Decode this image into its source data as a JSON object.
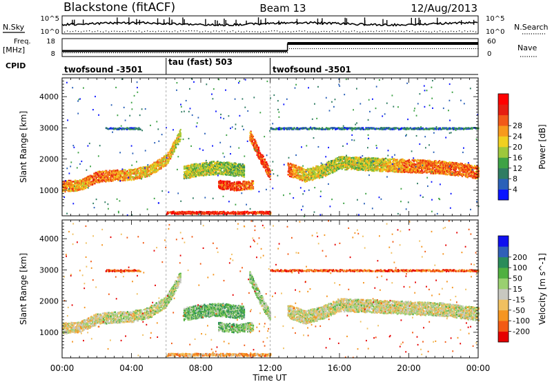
{
  "header": {
    "radar": "Blackstone (fitACF)",
    "beam": "Beam 13",
    "date": "12/Aug/2013"
  },
  "aux": {
    "nsky_label": "N.Sky",
    "nsearch_label": "N.Search",
    "nsky_ticks": [
      "10^5",
      "10^0"
    ],
    "nsearch_ticks": [
      "10^5",
      "10^0"
    ],
    "freq_label_1": "Freq.",
    "freq_label_2": "[MHz]",
    "freq_ticks": [
      "18",
      "8"
    ],
    "nave_label": "Nave",
    "nave_ticks": [
      "60",
      "0"
    ],
    "cpid_label": "CPID",
    "cpid_segments": [
      {
        "label": "twofsound -3501",
        "start_h": 0,
        "end_h": 6
      },
      {
        "label": "tau (fast) 503",
        "start_h": 6,
        "end_h": 12
      },
      {
        "label": "twofsound -3501",
        "start_h": 12,
        "end_h": 24
      }
    ]
  },
  "chart_data": [
    {
      "type": "heatmap",
      "name": "power",
      "ylabel": "Slant Range [km]",
      "y_ticks": [
        "1000",
        "2000",
        "3000",
        "4000"
      ],
      "ylim": [
        180,
        4600
      ],
      "xlim": [
        0,
        24
      ],
      "colorbar": {
        "label": "Power [dB]",
        "ticks": [
          "4",
          "8",
          "12",
          "16",
          "20",
          "24",
          "28"
        ],
        "colors": [
          "#0a14ff",
          "#2a60b8",
          "#2f7c62",
          "#3ea245",
          "#9ec83c",
          "#f0d020",
          "#f79a1c",
          "#f25a18",
          "#e61e10",
          "#ff0000"
        ]
      },
      "bands": [
        {
          "h": [
            0,
            1,
            2,
            3,
            4,
            5,
            6,
            6.8
          ],
          "r": [
            1150,
            1180,
            1450,
            1500,
            1520,
            1650,
            2000,
            2800
          ],
          "w": 250,
          "c": [
            0.75,
            0.6,
            0.75,
            0.7,
            0.6,
            0.6,
            0.6,
            0.5
          ]
        },
        {
          "h": [
            7,
            8,
            9,
            10.5
          ],
          "r": [
            1600,
            1700,
            1750,
            1650
          ],
          "w": 300,
          "c": [
            0.45,
            0.5,
            0.45,
            0.4
          ]
        },
        {
          "h": [
            9,
            10,
            11
          ],
          "r": [
            1200,
            1150,
            1200
          ],
          "w": 200,
          "c": [
            0.8,
            0.8,
            0.7
          ]
        },
        {
          "h": [
            10.8,
            11.4,
            12
          ],
          "r": [
            2800,
            2100,
            1500
          ],
          "w": 250,
          "c": [
            0.7,
            0.8,
            0.75
          ]
        },
        {
          "h": [
            13,
            14,
            15,
            16,
            18,
            20,
            22,
            24
          ],
          "r": [
            1700,
            1500,
            1650,
            1900,
            1850,
            1800,
            1750,
            1600
          ],
          "w": 300,
          "c": [
            0.75,
            0.55,
            0.5,
            0.5,
            0.5,
            0.7,
            0.7,
            0.75
          ]
        },
        {
          "h": [
            2.5,
            3.5,
            4.5
          ],
          "r": [
            3000,
            3000,
            3000
          ],
          "w": 40,
          "c": [
            0.2,
            0.2,
            0.2
          ]
        },
        {
          "h": [
            12,
            16,
            20,
            24
          ],
          "r": [
            3000,
            3000,
            3000,
            3000
          ],
          "w": 40,
          "c": [
            0.2,
            0.2,
            0.2,
            0.2
          ]
        },
        {
          "h": [
            6,
            9,
            12
          ],
          "r": [
            300,
            300,
            300
          ],
          "w": 60,
          "c": [
            0.85,
            0.85,
            0.85
          ]
        }
      ]
    },
    {
      "type": "heatmap",
      "name": "velocity",
      "ylabel": "Slant Range [km]",
      "y_ticks": [
        "1000",
        "2000",
        "3000",
        "4000"
      ],
      "ylim": [
        180,
        4600
      ],
      "xlim": [
        0,
        24
      ],
      "x_ticks": [
        "00:00",
        "04:00",
        "08:00",
        "12:00",
        "16:00",
        "20:00",
        "00:00"
      ],
      "xlabel": "Time UT",
      "colorbar": {
        "label": "Velocity [m s^-1]",
        "ticks": [
          "-200",
          "-100",
          "-50",
          "-15",
          "15",
          "50",
          "100",
          "200"
        ],
        "colors": [
          "#e60000",
          "#f25a14",
          "#f59520",
          "#f0c060",
          "#c8c8c0",
          "#9ad070",
          "#50b040",
          "#2a8c5a",
          "#3060b8",
          "#1010f0"
        ]
      },
      "bands": [
        {
          "h": [
            0,
            1,
            2,
            3,
            4,
            5,
            6,
            6.8
          ],
          "r": [
            1150,
            1180,
            1450,
            1500,
            1520,
            1650,
            2000,
            2800
          ],
          "w": 250,
          "c": [
            0.45,
            0.4,
            0.45,
            0.5,
            0.45,
            0.5,
            0.5,
            0.5
          ]
        },
        {
          "h": [
            7,
            8,
            9,
            10.5
          ],
          "r": [
            1600,
            1700,
            1750,
            1650
          ],
          "w": 300,
          "c": [
            0.62,
            0.62,
            0.62,
            0.6
          ]
        },
        {
          "h": [
            9,
            10,
            11
          ],
          "r": [
            1200,
            1150,
            1200
          ],
          "w": 200,
          "c": [
            0.62,
            0.6,
            0.55
          ]
        },
        {
          "h": [
            10.8,
            11.4,
            12
          ],
          "r": [
            2800,
            2100,
            1500
          ],
          "w": 250,
          "c": [
            0.6,
            0.55,
            0.5
          ]
        },
        {
          "h": [
            13,
            14,
            15,
            16,
            18,
            20,
            22,
            24
          ],
          "r": [
            1700,
            1500,
            1650,
            1900,
            1850,
            1800,
            1750,
            1600
          ],
          "w": 300,
          "c": [
            0.45,
            0.45,
            0.45,
            0.45,
            0.45,
            0.45,
            0.45,
            0.45
          ]
        },
        {
          "h": [
            2.5,
            3.5,
            4.5
          ],
          "r": [
            3000,
            3000,
            3000
          ],
          "w": 40,
          "c": [
            0.15,
            0.15,
            0.15
          ]
        },
        {
          "h": [
            12,
            16,
            20,
            24
          ],
          "r": [
            3000,
            3000,
            3000,
            3000
          ],
          "w": 40,
          "c": [
            0.15,
            0.15,
            0.15,
            0.15
          ]
        },
        {
          "h": [
            6,
            9,
            12
          ],
          "r": [
            300,
            300,
            300
          ],
          "w": 60,
          "c": [
            0.3,
            0.3,
            0.3
          ]
        }
      ]
    }
  ]
}
